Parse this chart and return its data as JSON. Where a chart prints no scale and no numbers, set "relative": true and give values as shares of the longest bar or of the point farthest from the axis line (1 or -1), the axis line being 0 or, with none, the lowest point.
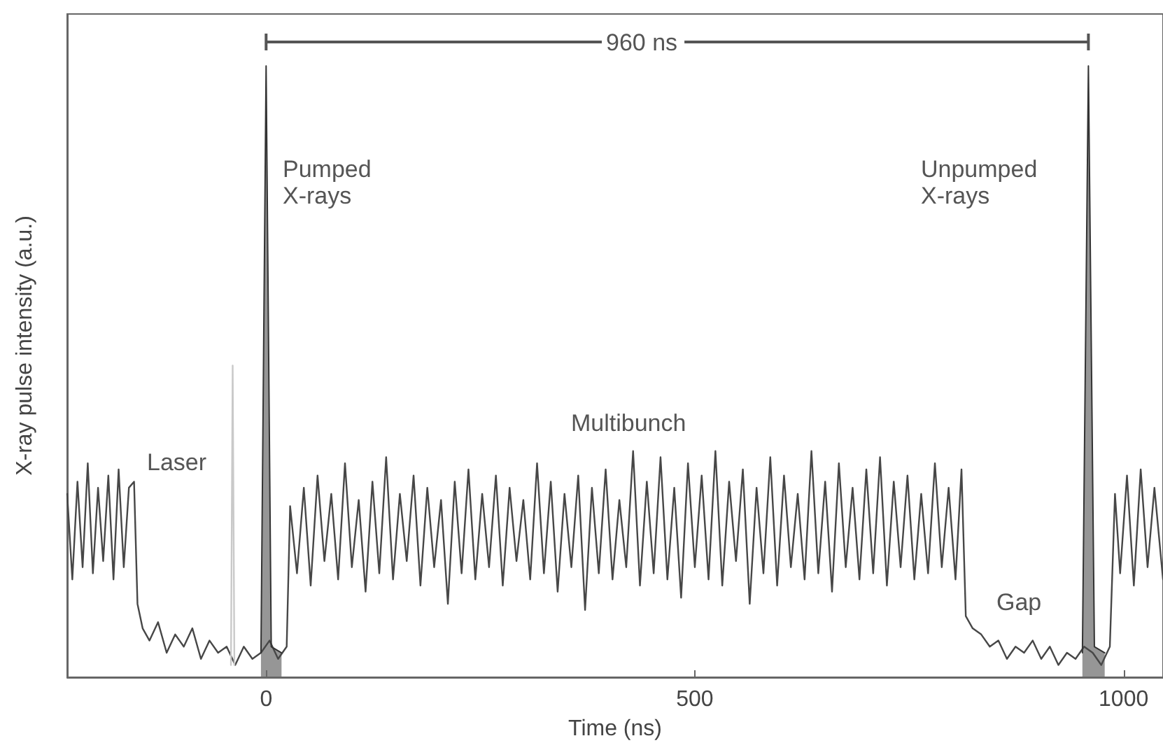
{
  "chart_data": {
    "type": "line",
    "relative": true,
    "xlabel": "Time (ns)",
    "ylabel": "X-ray pulse intensity (a.u.)",
    "xlim": [
      -232,
      1046
    ],
    "xticks": [
      0,
      500,
      {
        "value": 1000,
        "label": "1000"
      }
    ],
    "tick_labels": "x",
    "grid": false,
    "marker": "none",
    "line_style": "solid",
    "series": [
      {
        "color": "#474747",
        "x": [
          -232,
          -226,
          -220,
          -214,
          -208,
          -202,
          -196,
          -190,
          -184,
          -178,
          -172,
          -166,
          -160,
          -154,
          -150,
          -144,
          -136,
          -126,
          -116,
          -106,
          -96,
          -86,
          -76,
          -66,
          -56,
          -46,
          -36,
          -26,
          -16,
          -6,
          4,
          14,
          24,
          28,
          36,
          44,
          52,
          60,
          68,
          76,
          84,
          92,
          100,
          108,
          116,
          124,
          132,
          140,
          148,
          156,
          164,
          172,
          180,
          188,
          196,
          204,
          212,
          220,
          228,
          236,
          244,
          252,
          260,
          268,
          276,
          284,
          292,
          300,
          308,
          316,
          324,
          332,
          340,
          348,
          356,
          364,
          372,
          380,
          388,
          396,
          404,
          412,
          420,
          428,
          436,
          444,
          452,
          460,
          468,
          476,
          484,
          492,
          500,
          508,
          516,
          524,
          532,
          540,
          548,
          556,
          564,
          572,
          580,
          588,
          596,
          604,
          612,
          620,
          628,
          636,
          644,
          652,
          660,
          668,
          676,
          684,
          692,
          700,
          708,
          716,
          724,
          732,
          740,
          748,
          756,
          764,
          772,
          780,
          788,
          796,
          804,
          811,
          816,
          824,
          834,
          844,
          854,
          864,
          874,
          884,
          894,
          904,
          914,
          924,
          934,
          944,
          954,
          964,
          974,
          984,
          990,
          996,
          1004,
          1012,
          1020,
          1028,
          1036,
          1046
        ],
        "values": [
          0.3,
          0.16,
          0.32,
          0.18,
          0.35,
          0.17,
          0.31,
          0.19,
          0.33,
          0.16,
          0.34,
          0.18,
          0.31,
          0.32,
          0.12,
          0.08,
          0.06,
          0.09,
          0.04,
          0.07,
          0.05,
          0.08,
          0.03,
          0.06,
          0.04,
          0.05,
          0.02,
          0.05,
          0.03,
          0.04,
          0.06,
          0.03,
          0.05,
          0.28,
          0.17,
          0.31,
          0.15,
          0.33,
          0.19,
          0.3,
          0.16,
          0.35,
          0.18,
          0.29,
          0.14,
          0.32,
          0.17,
          0.36,
          0.16,
          0.3,
          0.19,
          0.33,
          0.15,
          0.31,
          0.18,
          0.29,
          0.12,
          0.32,
          0.17,
          0.34,
          0.16,
          0.3,
          0.18,
          0.33,
          0.15,
          0.31,
          0.19,
          0.29,
          0.16,
          0.35,
          0.17,
          0.32,
          0.14,
          0.3,
          0.18,
          0.33,
          0.11,
          0.31,
          0.17,
          0.34,
          0.16,
          0.29,
          0.18,
          0.37,
          0.15,
          0.32,
          0.17,
          0.36,
          0.16,
          0.31,
          0.13,
          0.35,
          0.18,
          0.33,
          0.16,
          0.37,
          0.15,
          0.32,
          0.19,
          0.34,
          0.12,
          0.31,
          0.17,
          0.36,
          0.15,
          0.33,
          0.18,
          0.3,
          0.16,
          0.37,
          0.17,
          0.32,
          0.14,
          0.35,
          0.18,
          0.31,
          0.16,
          0.34,
          0.17,
          0.36,
          0.15,
          0.32,
          0.18,
          0.33,
          0.16,
          0.3,
          0.17,
          0.35,
          0.18,
          0.31,
          0.16,
          0.34,
          0.1,
          0.08,
          0.07,
          0.05,
          0.06,
          0.03,
          0.05,
          0.04,
          0.06,
          0.03,
          0.05,
          0.02,
          0.04,
          0.03,
          0.05,
          0.04,
          0.02,
          0.05,
          0.3,
          0.17,
          0.33,
          0.15,
          0.34,
          0.18,
          0.31,
          0.16
        ]
      },
      {
        "color": "#c9c9c9",
        "x": [
          -41,
          -39,
          -37
        ],
        "values": [
          0.02,
          0.51,
          0.02
        ]
      },
      {
        "type": "area",
        "color": "#6a6a6a",
        "x": [
          -6,
          0,
          6,
          18
        ],
        "values": [
          0.04,
          1,
          0.05,
          0.04
        ]
      },
      {
        "type": "area",
        "color": "#6a6a6a",
        "x": [
          952,
          959,
          966,
          978
        ],
        "values": [
          0.04,
          1,
          0.05,
          0.04
        ]
      }
    ],
    "annotations": [
      "Laser",
      "Pumped\nX-rays",
      "Multibunch",
      "Unpumped\nX-rays",
      "Gap",
      "960 ns"
    ]
  }
}
